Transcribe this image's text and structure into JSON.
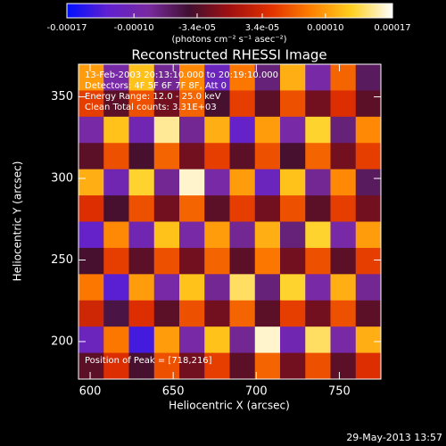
{
  "chart_data": {
    "type": "heatmap",
    "title": "Reconstructed RHESSI Image",
    "xlabel": "Heliocentric X (arcsec)",
    "ylabel": "Heliocentric Y (arcsec)",
    "colorbar_label": "(photons cm⁻² s⁻¹ asec⁻²)",
    "annotations": [
      "13-Feb-2003 20:13:10.000 to 20:19:10.000",
      "Detectors: 4F 5F 6F 7F 8F, Att 0",
      "Energy Range: 12.0 - 25.0 keV",
      "Clean     Total counts: 3.31E+03"
    ],
    "peak_note": "Position of Peak = [718,216]",
    "footer": "29-May-2013 13:57",
    "xlim": [
      593,
      775
    ],
    "ylim": [
      177,
      370
    ],
    "xticks": [
      600,
      650,
      700,
      750
    ],
    "yticks": [
      200,
      250,
      300,
      350
    ],
    "zlim": [
      -0.00017,
      0.00017
    ],
    "zticks": [
      {
        "value": -0.00017,
        "label": "-0.00017"
      },
      {
        "value": -0.0001,
        "label": "-0.00010"
      },
      {
        "value": -3.4e-05,
        "label": "-3.4e-05"
      },
      {
        "value": 3.4e-05,
        "label": "3.4e-05"
      },
      {
        "value": 0.0001,
        "label": "0.00010"
      },
      {
        "value": 0.00017,
        "label": "0.00017"
      }
    ],
    "colorscale": [
      "#0010ff",
      "#6020d0",
      "#7a2aa0",
      "#401030",
      "#a01010",
      "#e03000",
      "#ff8000",
      "#ffd020",
      "#ffffff"
    ],
    "z": [
      [
        0.0001,
        -9e-05,
        0.00012,
        -8e-05,
        9e-05,
        -0.00011,
        8e-05,
        -7e-05,
        0.00011,
        -9e-05,
        7e-05,
        -6e-05
      ],
      [
        5e-05,
        -3e-05,
        6e-05,
        -2e-05,
        7e-05,
        -4e-05,
        5e-05,
        -3e-05,
        6e-05,
        -2e-05,
        4e-05,
        -3e-05
      ],
      [
        -9e-05,
        0.00012,
        -0.0001,
        0.00015,
        -8e-05,
        0.00011,
        -0.00012,
        0.0001,
        -9e-05,
        0.00013,
        -7e-05,
        9e-05
      ],
      [
        -3e-05,
        6e-05,
        -4e-05,
        7e-05,
        -2e-05,
        5e-05,
        -3e-05,
        6e-05,
        -4e-05,
        7e-05,
        -2e-05,
        5e-05
      ],
      [
        0.00011,
        -0.0001,
        0.00013,
        -8e-05,
        0.00016,
        -9e-05,
        0.0001,
        -0.00011,
        0.00012,
        -8e-05,
        9e-05,
        -6e-05
      ],
      [
        4e-05,
        -4e-05,
        6e-05,
        -2e-05,
        7e-05,
        -3e-05,
        5e-05,
        -2e-05,
        6e-05,
        -3e-05,
        5e-05,
        -2e-05
      ],
      [
        -0.00012,
        9e-05,
        -0.0001,
        0.00012,
        -9e-05,
        0.0001,
        -8e-05,
        0.00011,
        -7e-05,
        0.00013,
        -9e-05,
        0.0001
      ],
      [
        -4e-05,
        5e-05,
        -3e-05,
        6e-05,
        -2e-05,
        7e-05,
        -3e-05,
        8e-05,
        -2e-05,
        6e-05,
        -3e-05,
        5e-05
      ],
      [
        8e-05,
        -0.00013,
        0.0001,
        -9e-05,
        0.00012,
        -8e-05,
        0.00014,
        -7e-05,
        0.00013,
        -9e-05,
        0.00011,
        -8e-05
      ],
      [
        3e-05,
        -5e-05,
        4e-05,
        -3e-05,
        6e-05,
        -2e-05,
        7e-05,
        -3e-05,
        5e-05,
        -2e-05,
        6e-05,
        -3e-05
      ],
      [
        -0.00011,
        8e-05,
        -0.00014,
        0.0001,
        -9e-05,
        0.00012,
        -8e-05,
        0.00016,
        -0.0001,
        0.00014,
        -9e-05,
        0.00011
      ],
      [
        -3e-05,
        4e-05,
        -4e-05,
        6e-05,
        -2e-05,
        5e-05,
        -3e-05,
        7e-05,
        -2e-05,
        6e-05,
        -3e-05,
        4e-05
      ]
    ]
  }
}
